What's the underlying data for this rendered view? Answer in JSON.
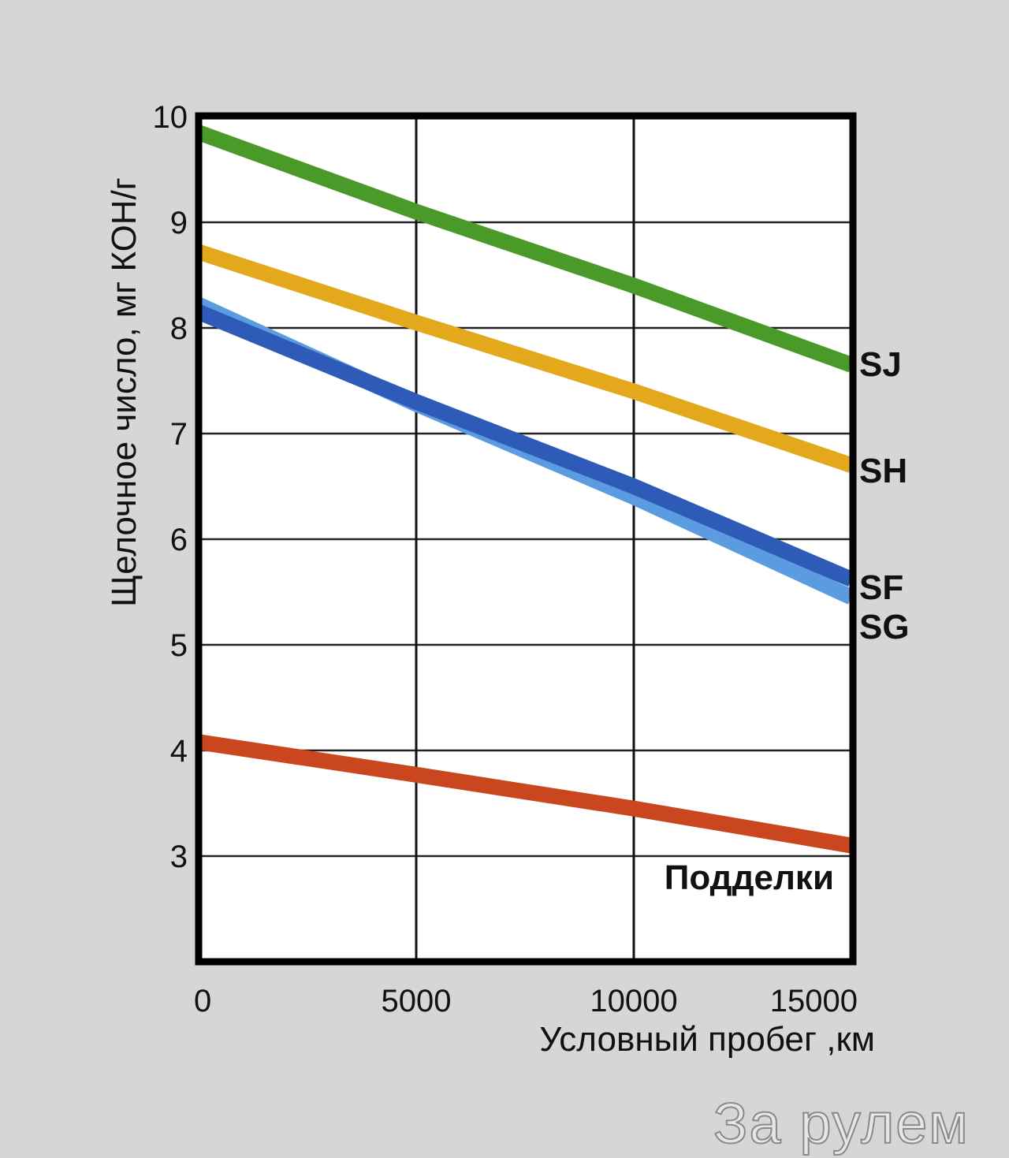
{
  "chart_data": {
    "type": "line",
    "title": "",
    "xlabel": "Условный пробег ,км",
    "ylabel": "Щелочное число, мг КОН/г",
    "x": [
      0,
      5000,
      10000,
      15000
    ],
    "xlim": [
      0,
      15000
    ],
    "ylim": [
      2,
      10
    ],
    "x_ticks": [
      "0",
      "5000",
      "10000",
      "15000"
    ],
    "y_ticks": [
      "10",
      "9",
      "8",
      "7",
      "6",
      "5",
      "4",
      "3"
    ],
    "grid": true,
    "legend_position": "inline-right",
    "series": [
      {
        "name": "SJ",
        "color": "#4a9a2a",
        "values": [
          9.85,
          9.1,
          8.4,
          7.65
        ]
      },
      {
        "name": "SH",
        "color": "#e3a81c",
        "values": [
          8.72,
          8.05,
          7.4,
          6.7
        ]
      },
      {
        "name": "SG",
        "color": "#5b9be0",
        "values": [
          8.22,
          7.28,
          6.4,
          5.45
        ]
      },
      {
        "name": "SF",
        "color": "#2f5bb8",
        "values": [
          8.15,
          7.3,
          6.5,
          5.62
        ]
      },
      {
        "name": "Подделки",
        "color": "#c9461e",
        "values": [
          4.08,
          3.77,
          3.45,
          3.1
        ]
      }
    ]
  },
  "labels": {
    "sj": "SJ",
    "sh": "SH",
    "sf": "SF",
    "sg": "SG",
    "fakes": "Подделки"
  },
  "watermark": "За рулем"
}
